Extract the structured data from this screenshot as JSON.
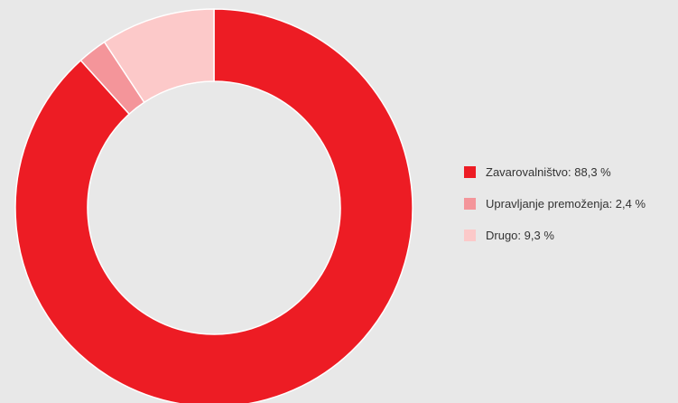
{
  "chart_data": {
    "type": "pie",
    "variant": "donut",
    "categories": [
      "Zavarovalništvo",
      "Upravljanje premoženja",
      "Drugo"
    ],
    "values": [
      88.3,
      2.4,
      9.3
    ],
    "unit": "%",
    "colors": [
      "#ed1c24",
      "#f4959a",
      "#fcc9c9"
    ],
    "start_angle_deg": 0,
    "direction": "clockwise",
    "legend_position": "right",
    "legend": [
      {
        "label": "Zavarovalništvo: 88,3 %",
        "color": "#ed1c24"
      },
      {
        "label": "Upravljanje premoženja: 2,4 %",
        "color": "#f4959a"
      },
      {
        "label": "Drugo: 9,3 %",
        "color": "#fcc9c9"
      }
    ]
  },
  "colors": {
    "background": "#e8e8e8",
    "separator": "#ffffff"
  }
}
